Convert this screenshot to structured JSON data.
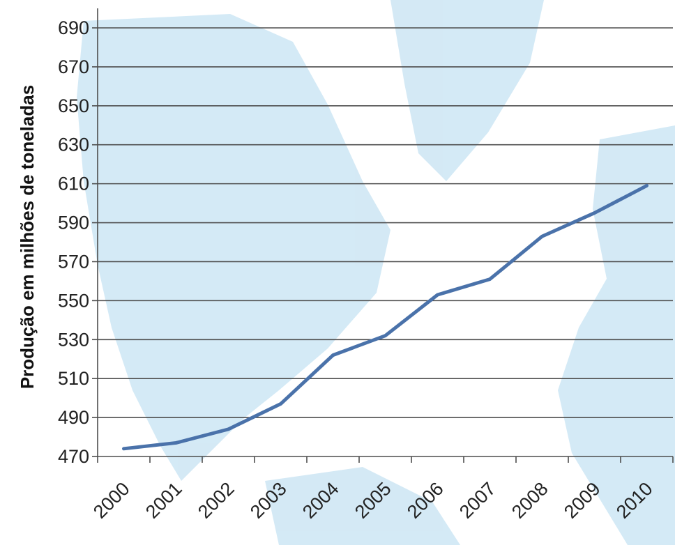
{
  "chart_data": {
    "type": "line",
    "title": "",
    "xlabel": "",
    "ylabel": "Produção em milhões de toneladas",
    "categories": [
      "2000",
      "2001",
      "2002",
      "2003",
      "2004",
      "2005",
      "2006",
      "2007",
      "2008",
      "2009",
      "2010"
    ],
    "series": [
      {
        "values": [
          474,
          477,
          484,
          497,
          522,
          532,
          553,
          561,
          583,
          595,
          609
        ]
      }
    ],
    "ylim": [
      470,
      690
    ],
    "yticks": [
      470,
      490,
      510,
      530,
      550,
      570,
      590,
      610,
      630,
      650,
      670,
      690
    ],
    "grid": true,
    "legend": "none",
    "colors": {
      "line": "#4a72aa",
      "grid": "#4d4d4d",
      "map_land": "#c8e3f2",
      "map_ocean": "#ffffff"
    }
  }
}
